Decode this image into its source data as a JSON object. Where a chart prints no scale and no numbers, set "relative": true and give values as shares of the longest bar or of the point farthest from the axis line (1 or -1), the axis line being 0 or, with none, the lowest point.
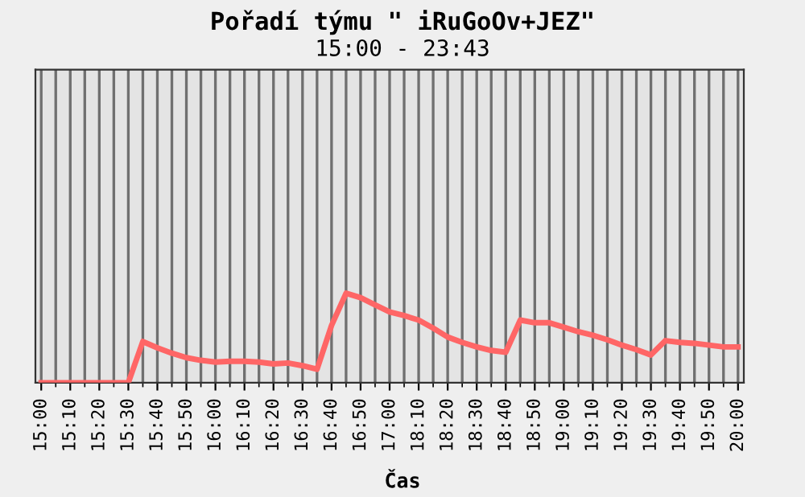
{
  "chart_data": {
    "type": "line",
    "title": "Pořadí týmu \" iRuGoOv+JEZ\"",
    "subtitle": "15:00 - 23:43",
    "xlabel": "Čas",
    "relative": true,
    "grid": "x",
    "marker": "none",
    "line_style": "solid",
    "categories": [
      "15:00",
      null,
      "15:10",
      null,
      "15:20",
      null,
      "15:30",
      null,
      "15:40",
      null,
      "15:50",
      null,
      "16:00",
      null,
      "16:10",
      null,
      "16:20",
      null,
      "16:30",
      null,
      "16:40",
      null,
      "16:50",
      null,
      "17:00",
      null,
      "18:10",
      null,
      "18:20",
      null,
      "18:30",
      null,
      "18:40",
      null,
      "18:50",
      null,
      "19:00",
      null,
      "19:10",
      null,
      "19:20",
      null,
      "19:30",
      null,
      "19:40",
      null,
      "19:50",
      null,
      "20:00"
    ],
    "series": [
      {
        "color": "#ff6666",
        "values": [
          0,
          0,
          0,
          0,
          0,
          0,
          0,
          0.46,
          0.39,
          0.33,
          0.28,
          0.25,
          0.23,
          0.24,
          0.24,
          0.23,
          0.21,
          0.22,
          0.19,
          0.15,
          0.64,
          1.0,
          0.95,
          0.87,
          0.79,
          0.75,
          0.7,
          0.61,
          0.51,
          0.45,
          0.4,
          0.36,
          0.34,
          0.7,
          0.67,
          0.67,
          0.62,
          0.57,
          0.53,
          0.48,
          0.42,
          0.37,
          0.31,
          0.47,
          0.45,
          0.44,
          0.42,
          0.4,
          0.4
        ]
      }
    ]
  }
}
